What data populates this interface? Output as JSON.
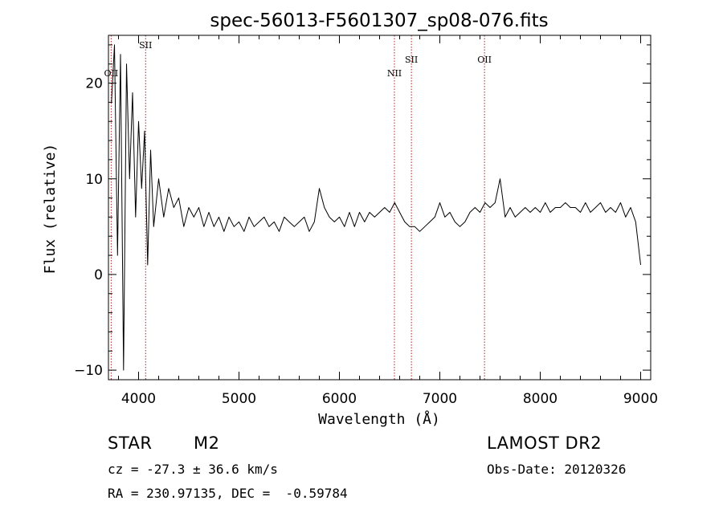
{
  "chart_data": {
    "type": "line",
    "title": "spec-56013-F5601307_sp08-076.fits",
    "xlabel": "Wavelength (Å)",
    "ylabel": "Flux (relative)",
    "xlim": [
      3700,
      9100
    ],
    "ylim": [
      -11,
      25
    ],
    "xticks": [
      4000,
      5000,
      6000,
      7000,
      8000,
      9000
    ],
    "yticks": [
      -10,
      0,
      10,
      20
    ],
    "grid": false,
    "line_color": "#000000",
    "marker_color": "#b22222",
    "lines": [
      {
        "label": "OII",
        "x": 3727
      },
      {
        "label": "SII",
        "x": 4070
      },
      {
        "label": "NII",
        "x": 6548
      },
      {
        "label": "SII",
        "x": 6717
      },
      {
        "label": "OII",
        "x": 7445
      }
    ],
    "series": [
      {
        "x": [
          3730,
          3760,
          3790,
          3820,
          3850,
          3880,
          3910,
          3940,
          3970,
          4000,
          4030,
          4060,
          4090,
          4120,
          4150,
          4200,
          4250,
          4300,
          4350,
          4400,
          4450,
          4500,
          4550,
          4600,
          4650,
          4700,
          4750,
          4800,
          4850,
          4900,
          4950,
          5000,
          5050,
          5100,
          5150,
          5200,
          5250,
          5300,
          5350,
          5400,
          5450,
          5500,
          5550,
          5600,
          5650,
          5700,
          5750,
          5800,
          5850,
          5900,
          5950,
          6000,
          6050,
          6100,
          6150,
          6200,
          6250,
          6300,
          6350,
          6400,
          6450,
          6500,
          6550,
          6600,
          6650,
          6700,
          6750,
          6800,
          6850,
          6900,
          6950,
          7000,
          7050,
          7100,
          7150,
          7200,
          7250,
          7300,
          7350,
          7400,
          7450,
          7500,
          7550,
          7600,
          7650,
          7700,
          7750,
          7800,
          7850,
          7900,
          7950,
          8000,
          8050,
          8100,
          8150,
          8200,
          8250,
          8300,
          8350,
          8400,
          8450,
          8500,
          8550,
          8600,
          8650,
          8700,
          8750,
          8800,
          8850,
          8900,
          8950,
          9000
        ],
        "values": [
          18,
          24,
          2,
          23,
          -10,
          22,
          10,
          19,
          6,
          16,
          9,
          15,
          1,
          13,
          5,
          10,
          6,
          9,
          7,
          8,
          5,
          7,
          6,
          7,
          5,
          6.5,
          5,
          6,
          4.5,
          6,
          5,
          5.5,
          4.5,
          6,
          5,
          5.5,
          6,
          5,
          5.5,
          4.5,
          6,
          5.5,
          5,
          5.5,
          6,
          4.5,
          5.5,
          9,
          7,
          6,
          5.5,
          6,
          5,
          6.5,
          5,
          6.5,
          5.5,
          6.5,
          6,
          6.5,
          7,
          6.5,
          7.5,
          6.5,
          5.5,
          5,
          5,
          4.5,
          5,
          5.5,
          6,
          7.5,
          6,
          6.5,
          5.5,
          5,
          5.5,
          6.5,
          7,
          6.5,
          7.5,
          7,
          7.5,
          10,
          6,
          7,
          6,
          6.5,
          7,
          6.5,
          7,
          6.5,
          7.5,
          6.5,
          7,
          7,
          7.5,
          7,
          7,
          6.5,
          7.5,
          6.5,
          7,
          7.5,
          6.5,
          7,
          6.5,
          7.5,
          6,
          7,
          5.5,
          1
        ]
      }
    ]
  },
  "info": {
    "object_type": "STAR",
    "subclass": "M2",
    "survey": "LAMOST DR2",
    "cz_text": "cz = -27.3 ± 36.6 km/s",
    "obs_date": "Obs-Date: 20120326",
    "coords": "RA = 230.97135, DEC =  -0.59784"
  }
}
